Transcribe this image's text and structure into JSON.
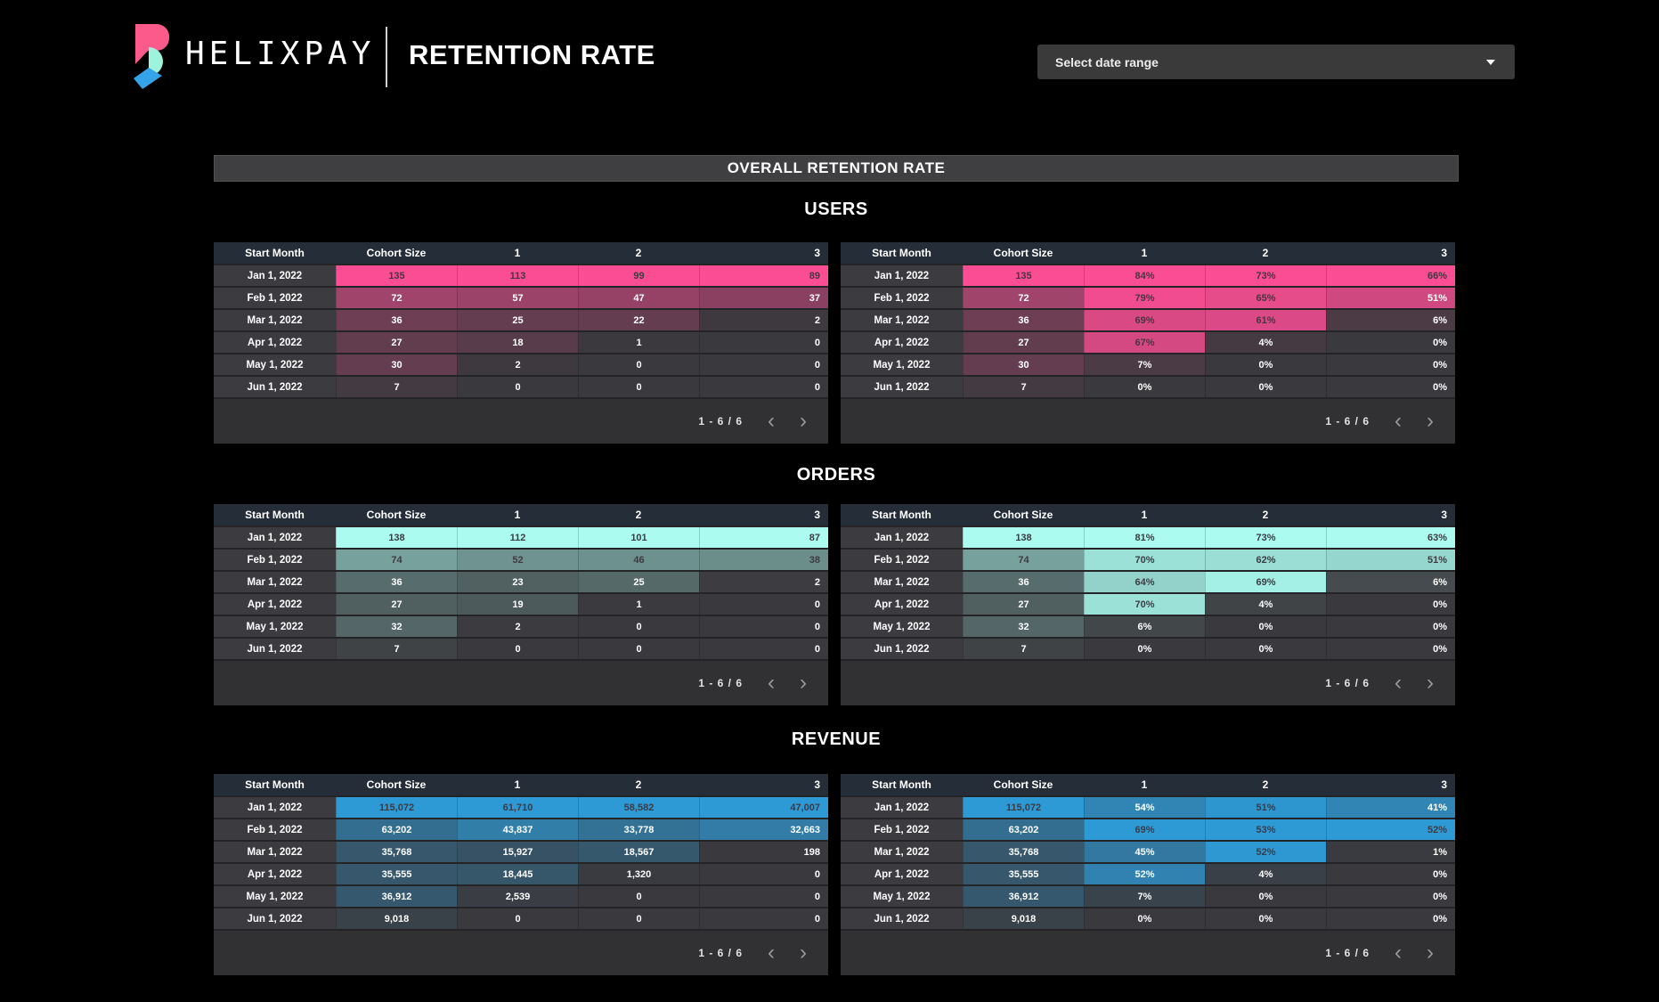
{
  "header": {
    "brand": "HELIXPAY",
    "page_title": "RETENTION RATE",
    "date_selector_label": "Select date range",
    "logo_colors": {
      "pink": "#fb5a8b",
      "mint": "#9df3dc",
      "blue": "#35a3e8"
    }
  },
  "overall_bar_title": "OVERALL RETENTION RATE",
  "table_columns": [
    "Start Month",
    "Cohort Size",
    "1",
    "2",
    "3"
  ],
  "row_labels": [
    "Jan 1, 2022",
    "Feb 1, 2022",
    "Mar 1, 2022",
    "Apr 1, 2022",
    "May 1, 2022",
    "Jun 1, 2022"
  ],
  "pagination": {
    "label": "1 - 6 / 6",
    "prev_icon": "‹",
    "next_icon": "›"
  },
  "colors": {
    "cell_base": "#3a393d",
    "row_gap": "#242427",
    "panel_bg": "#313134",
    "header_row_bg": "#252e38",
    "label_cell_bg": "#3c3b3f",
    "users_accent": "#fb4d94",
    "orders_accent": "#abfbf0",
    "revenue_accent": "#2e9ad5",
    "dark_text": "#3f3a42",
    "light_text": "#ffffff"
  },
  "chart_data": [
    {
      "type": "heatmap",
      "section": "USERS",
      "accent": "#fb4d94",
      "counts": [
        [
          "135",
          "113",
          "99",
          "89"
        ],
        [
          "72",
          "57",
          "47",
          "37"
        ],
        [
          "36",
          "25",
          "22",
          "2"
        ],
        [
          "27",
          "18",
          "1",
          "0"
        ],
        [
          "30",
          "2",
          "0",
          "0"
        ],
        [
          "7",
          "0",
          "0",
          "0"
        ]
      ],
      "percents": [
        [
          "135",
          "84%",
          "73%",
          "66%"
        ],
        [
          "72",
          "79%",
          "65%",
          "51%"
        ],
        [
          "36",
          "69%",
          "61%",
          "6%"
        ],
        [
          "27",
          "67%",
          "4%",
          "0%"
        ],
        [
          "30",
          "7%",
          "0%",
          "0%"
        ],
        [
          "7",
          "0%",
          "0%",
          "0%"
        ]
      ]
    },
    {
      "type": "heatmap",
      "section": "ORDERS",
      "accent": "#abfbf0",
      "counts": [
        [
          "138",
          "112",
          "101",
          "87"
        ],
        [
          "74",
          "52",
          "46",
          "38"
        ],
        [
          "36",
          "23",
          "25",
          "2"
        ],
        [
          "27",
          "19",
          "1",
          "0"
        ],
        [
          "32",
          "2",
          "0",
          "0"
        ],
        [
          "7",
          "0",
          "0",
          "0"
        ]
      ],
      "percents": [
        [
          "138",
          "81%",
          "73%",
          "63%"
        ],
        [
          "74",
          "70%",
          "62%",
          "51%"
        ],
        [
          "36",
          "64%",
          "69%",
          "6%"
        ],
        [
          "27",
          "70%",
          "4%",
          "0%"
        ],
        [
          "32",
          "6%",
          "0%",
          "0%"
        ],
        [
          "7",
          "0%",
          "0%",
          "0%"
        ]
      ]
    },
    {
      "type": "heatmap",
      "section": "REVENUE",
      "accent": "#2e9ad5",
      "counts": [
        [
          "115,072",
          "61,710",
          "58,582",
          "47,007"
        ],
        [
          "63,202",
          "43,837",
          "33,778",
          "32,663"
        ],
        [
          "35,768",
          "15,927",
          "18,567",
          "198"
        ],
        [
          "35,555",
          "18,445",
          "1,320",
          "0"
        ],
        [
          "36,912",
          "2,539",
          "0",
          "0"
        ],
        [
          "9,018",
          "0",
          "0",
          "0"
        ]
      ],
      "percents": [
        [
          "115,072",
          "54%",
          "51%",
          "41%"
        ],
        [
          "63,202",
          "69%",
          "53%",
          "52%"
        ],
        [
          "35,768",
          "45%",
          "52%",
          "1%"
        ],
        [
          "35,555",
          "52%",
          "4%",
          "0%"
        ],
        [
          "36,912",
          "7%",
          "0%",
          "0%"
        ],
        [
          "9,018",
          "0%",
          "0%",
          "0%"
        ]
      ]
    }
  ]
}
